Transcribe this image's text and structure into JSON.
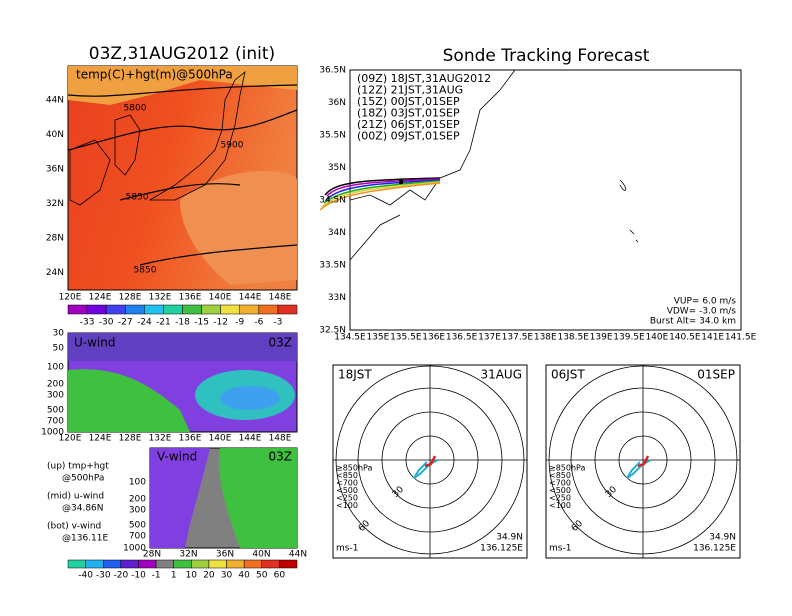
{
  "left": {
    "title": "03Z,31AUG2012 (init)",
    "map": {
      "label": "temp(C)+hgt(m)@500hPa",
      "lat_labels": [
        "44N",
        "40N",
        "36N",
        "32N",
        "28N",
        "24N"
      ],
      "lon_labels": [
        "120E",
        "124E",
        "128E",
        "132E",
        "136E",
        "140E",
        "144E",
        "148E"
      ],
      "contour_labels": [
        "5800",
        "5900",
        "5850",
        "5850"
      ]
    },
    "temp_colorbar": [
      "-33",
      "-30",
      "-27",
      "-24",
      "-21",
      "-18",
      "-15",
      "-12",
      "-9",
      "-6",
      "-3"
    ],
    "u_wind": {
      "label": "U-wind",
      "time": "03Z",
      "levels": [
        "30",
        "50",
        "100",
        "200",
        "300",
        "500",
        "700",
        "1000"
      ],
      "lon_labels": [
        "120E",
        "124E",
        "128E",
        "132E",
        "136E",
        "140E",
        "144E",
        "148E"
      ]
    },
    "v_wind": {
      "label": "V-wind",
      "time": "03Z",
      "levels": [
        "100",
        "200",
        "300",
        "500",
        "700",
        "1000"
      ],
      "lat_labels": [
        "28N",
        "32N",
        "36N",
        "40N",
        "44N"
      ]
    },
    "notes": [
      "(up) tmp+hgt",
      "@500hPa",
      "(mid) u-wind",
      "@34.86N",
      "(bot) v-wind",
      "@136.11E"
    ],
    "wind_colorbar": [
      "-40",
      "-30",
      "-20",
      "-10",
      "-1",
      "1",
      "10",
      "20",
      "30",
      "40",
      "50",
      "60"
    ]
  },
  "right": {
    "title": "Sonde Tracking Forecast",
    "map": {
      "lat_labels": [
        "36.5N",
        "36N",
        "35.5N",
        "35N",
        "34.5N",
        "34N",
        "33.5N",
        "33N",
        "32.5N"
      ],
      "lon_labels": [
        "134.5E",
        "135E",
        "135.5E",
        "136E",
        "136.5E",
        "137E",
        "137.5E",
        "138E",
        "138.5E",
        "139E",
        "139.5E",
        "140E",
        "140.5E",
        "141E",
        "141.5E"
      ],
      "legend": [
        {
          "text": "(09Z) 18JST,31AUG2012",
          "color": "#000000"
        },
        {
          "text": "(12Z) 21JST,31AUG",
          "color": "#b000b0"
        },
        {
          "text": "(15Z) 00JST,01SEP",
          "color": "#2020e0"
        },
        {
          "text": "(18Z) 03JST,01SEP",
          "color": "#10b010"
        },
        {
          "text": "(21Z) 06JST,01SEP",
          "color": "#d8d040"
        },
        {
          "text": "(00Z) 09JST,01SEP",
          "color": "#f09020"
        }
      ],
      "info": [
        "VUP= 6.0 m/s",
        "VDW= -3.0 m/s",
        "Burst Alt= 34.0 km"
      ]
    },
    "hodographs": [
      {
        "time": "18JST",
        "date": "31AUG"
      },
      {
        "time": "06JST",
        "date": "01SEP"
      }
    ],
    "hodo_legend": [
      {
        "text": "≥850hPa",
        "color": "#e02020"
      },
      {
        "text": "<850",
        "color": "#f0a020"
      },
      {
        "text": "<700",
        "color": "#c0c020"
      },
      {
        "text": "<500",
        "color": "#20c020"
      },
      {
        "text": "<250",
        "color": "#20b0d0"
      },
      {
        "text": "<100",
        "color": "#2020e0"
      }
    ],
    "ring_labels": [
      "30",
      "60"
    ],
    "unit": "ms-1",
    "lat": "34.9N",
    "lon": "136.125E"
  }
}
